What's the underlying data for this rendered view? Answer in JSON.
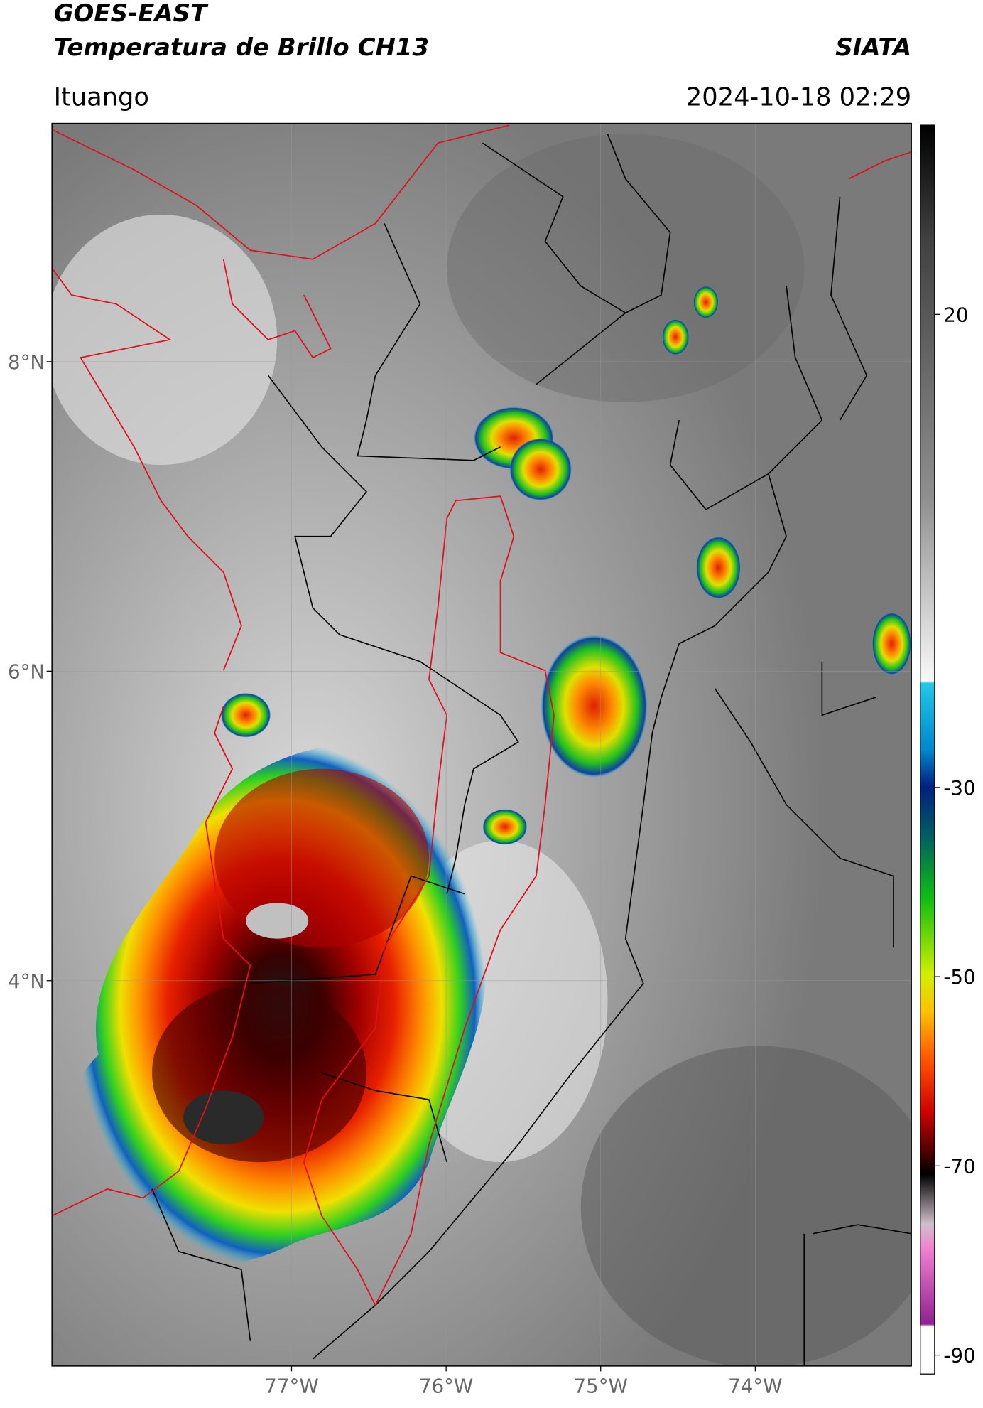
{
  "header": {
    "title_line1": "GOES-EAST",
    "title_line2": "Temperatura de Brillo CH13",
    "brand": "SIATA",
    "location": "Ituango",
    "datetime": "2024-10-18 02:29"
  },
  "map": {
    "xlim": [
      -78.55,
      -72.99
    ],
    "ylim": [
      1.51,
      9.54
    ],
    "xticks": [
      {
        "value": -77,
        "label": "77°W"
      },
      {
        "value": -76,
        "label": "76°W"
      },
      {
        "value": -75,
        "label": "75°W"
      },
      {
        "value": -74,
        "label": "74°W"
      }
    ],
    "yticks": [
      {
        "value": 8,
        "label": "8°N"
      },
      {
        "value": 6,
        "label": "6°N"
      },
      {
        "value": 4,
        "label": "4°N"
      }
    ],
    "grid": true
  },
  "colorbar": {
    "lim": [
      -92,
      40
    ],
    "ticks": [
      20,
      -30,
      -50,
      -70,
      -90
    ]
  }
}
